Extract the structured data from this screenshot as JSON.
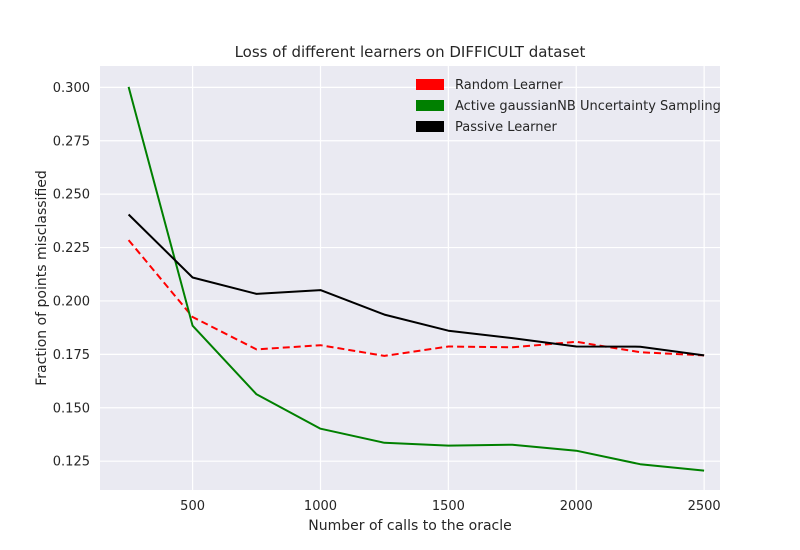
{
  "chart_data": {
    "type": "line",
    "title": "Loss of different learners on DIFFICULT dataset",
    "xlabel": "Number of calls to the oracle",
    "ylabel": "Fraction of points misclassified",
    "xlim": [
      138,
      2562
    ],
    "ylim": [
      0.1115,
      0.31
    ],
    "xticks": [
      500,
      1000,
      1500,
      2000,
      2500
    ],
    "yticks": [
      0.125,
      0.15,
      0.175,
      0.2,
      0.225,
      0.25,
      0.275,
      0.3
    ],
    "ytick_labels": [
      "0.125",
      "0.150",
      "0.175",
      "0.200",
      "0.225",
      "0.250",
      "0.275",
      "0.300"
    ],
    "grid": true,
    "legend_position": "top-right",
    "x": [
      250,
      500,
      750,
      1000,
      1250,
      1500,
      1750,
      2000,
      2250,
      2500
    ],
    "series": [
      {
        "name": "Random Learner",
        "color": "#ff0000",
        "dash": "dashed",
        "values": [
          0.2285,
          0.1925,
          0.1773,
          0.1793,
          0.1743,
          0.1787,
          0.1783,
          0.1809,
          0.176,
          0.1745
        ]
      },
      {
        "name": "Active gaussianNB Uncertainty Sampling",
        "color": "#008000",
        "dash": "solid",
        "values": [
          0.3002,
          0.1884,
          0.1563,
          0.1402,
          0.1336,
          0.1323,
          0.1327,
          0.1299,
          0.1236,
          0.1206
        ]
      },
      {
        "name": "Passive Learner",
        "color": "#000000",
        "dash": "solid",
        "values": [
          0.2405,
          0.211,
          0.2033,
          0.2051,
          0.1936,
          0.1861,
          0.1826,
          0.1787,
          0.1786,
          0.1745
        ]
      }
    ]
  }
}
